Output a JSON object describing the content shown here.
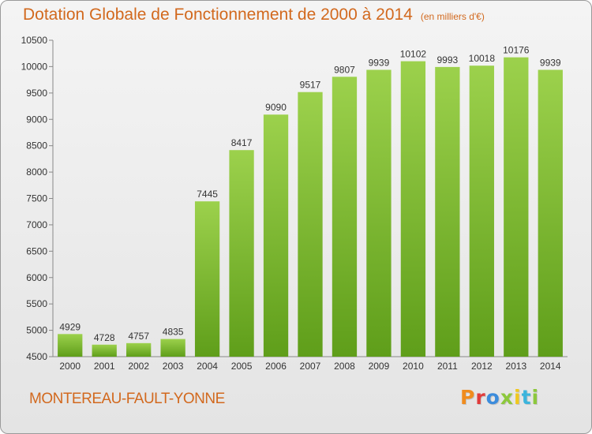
{
  "header": {
    "title": "Dotation Globale de Fonctionnement de 2000 à 2014",
    "unit": "(en milliers d'€)"
  },
  "footer": {
    "commune": "MONTEREAU-FAULT-YONNE",
    "logo_text": "Proxiti",
    "logo_colors": [
      "#f08c1e",
      "#e03c3c",
      "#3c8cdc",
      "#8cc83c",
      "#f0c81e",
      "#3cb4dc",
      "#8cc83c"
    ]
  },
  "colors": {
    "bar_light": "#9cd14c",
    "bar_dark": "#5f9e1a",
    "axis_text": "#333333",
    "title": "#d2691e"
  },
  "chart_data": {
    "type": "bar",
    "title": "Dotation Globale de Fonctionnement de 2000 à 2014",
    "subtitle": "(en milliers d'€)",
    "xlabel": "",
    "ylabel": "",
    "categories": [
      "2000",
      "2001",
      "2002",
      "2003",
      "2004",
      "2005",
      "2006",
      "2007",
      "2008",
      "2009",
      "2010",
      "2011",
      "2012",
      "2013",
      "2014"
    ],
    "values": [
      4929,
      4728,
      4757,
      4835,
      7445,
      8417,
      9090,
      9517,
      9807,
      9939,
      10102,
      9993,
      10018,
      10176,
      9939
    ],
    "ylim": [
      4500,
      10500
    ],
    "yticks": [
      4500,
      5000,
      5500,
      6000,
      6500,
      7000,
      7500,
      8000,
      8500,
      9000,
      9500,
      10000,
      10500
    ],
    "grid": false,
    "legend": "none"
  }
}
